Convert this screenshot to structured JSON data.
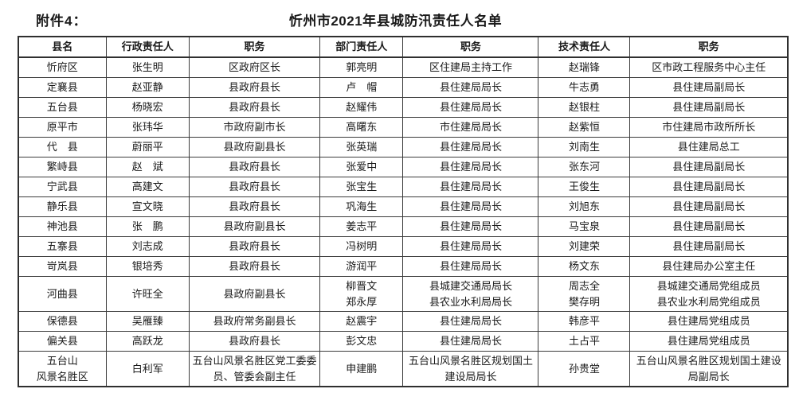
{
  "page": {
    "attachment_label": "附件4：",
    "title": "忻州市2021年县城防汛责任人名单"
  },
  "table": {
    "headers": [
      "县名",
      "行政责任人",
      "职务",
      "部门责任人",
      "职务",
      "技术责任人",
      "职务"
    ],
    "col_widths": [
      "11.4%",
      "10.8%",
      "17.0%",
      "10.8%",
      "17.6%",
      "11.9%",
      "20.5%"
    ],
    "rows": [
      [
        "忻府区",
        "张生明",
        "区政府区长",
        "郭亮明",
        "区住建局主持工作",
        "赵瑞锋",
        "区市政工程服务中心主任"
      ],
      [
        "定襄县",
        "赵亚静",
        "县政府县长",
        "卢　帽",
        "县住建局局长",
        "牛志勇",
        "县住建局副局长"
      ],
      [
        "五台县",
        "杨晓宏",
        "县政府县长",
        "赵耀伟",
        "县住建局局长",
        "赵银柱",
        "县住建局副局长"
      ],
      [
        "原平市",
        "张玮华",
        "市政府副市长",
        "高曙东",
        "市住建局局长",
        "赵紫恒",
        "市住建局市政所所长"
      ],
      [
        "代　县",
        "蔚丽平",
        "县政府副县长",
        "张英瑞",
        "县住建局局长",
        "刘南生",
        "县住建局总工"
      ],
      [
        "繁峙县",
        "赵　斌",
        "县政府县长",
        "张爱中",
        "县住建局局长",
        "张东河",
        "县住建局副局长"
      ],
      [
        "宁武县",
        "高建文",
        "县政府县长",
        "张宝生",
        "县住建局局长",
        "王俊生",
        "县住建局副局长"
      ],
      [
        "静乐县",
        "宣文晓",
        "县政府县长",
        "巩海生",
        "县住建局局长",
        "刘旭东",
        "县住建局副局长"
      ],
      [
        "神池县",
        "张　鹏",
        "县政府副县长",
        "姜志平",
        "县住建局局长",
        "马宝泉",
        "县住建局副局长"
      ],
      [
        "五寨县",
        "刘志成",
        "县政府县长",
        "冯树明",
        "县住建局局长",
        "刘建荣",
        "县住建局副局长"
      ],
      [
        "岢岚县",
        "银培秀",
        "县政府县长",
        "游润平",
        "县住建局局长",
        "杨文东",
        "县住建局办公室主任"
      ],
      [
        "河曲县",
        "许旺全",
        "县政府副县长",
        "柳晋文\n郑永厚",
        "县城建交通局局长\n县农业水利局局长",
        "周志全\n樊存明",
        "县城建交通局党组成员\n县农业水利局党组成员"
      ],
      [
        "保德县",
        "吴雁臻",
        "县政府常务副县长",
        "赵震宇",
        "县住建局局长",
        "韩彦平",
        "县住建局党组成员"
      ],
      [
        "偏关县",
        "高跃龙",
        "县政府县长",
        "彭文忠",
        "县住建局局长",
        "土占平",
        "县住建局党组成员"
      ],
      [
        "五台山\n风景名胜区",
        "白利军",
        "五台山风景名胜区党工委委员、管委会副主任",
        "申建鹏",
        "五台山风景名胜区规划国土建设局局长",
        "孙贵堂",
        "五台山风景名胜区规划国土建设局副局长"
      ]
    ]
  }
}
